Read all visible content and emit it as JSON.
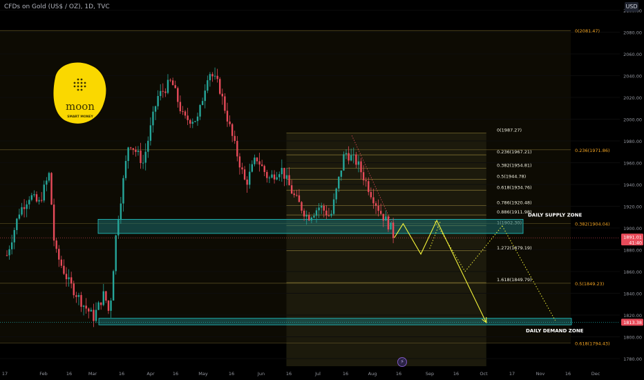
{
  "header": {
    "symbol_title": "CFDs on Gold (US$ / OZ), 1D, TVC",
    "currency_button": "USD"
  },
  "logo": {
    "text_main": "moon",
    "text_sub": "SMART MONEY"
  },
  "colors": {
    "background": "#000000",
    "up_candle": "#26a69a",
    "down_candle": "#e84b5a",
    "fib_line": "#8a7a35",
    "fib_label": "#f5a623",
    "zone_fill": "#1b6d6d",
    "zone_border": "#22c7c7",
    "projection": "#f5f53a",
    "logo_bg": "#fad800",
    "price_badge": "#e84b5a"
  },
  "annotations": {
    "supply_zone": "DAILY SUPPLY ZONE",
    "demand_zone": "DAILY DEMAND ZONE"
  },
  "badges": {
    "last_price": "1891.01",
    "countdown": "41:40",
    "demand_price": "1813.38"
  },
  "icons": {
    "bottom_badge": "lightning-icon"
  },
  "chart_data": {
    "type": "candlestick",
    "title": "CFDs on Gold (US$ / OZ), 1D, TVC",
    "ylim": [
      1770,
      2110
    ],
    "y_ticks": [
      1780,
      1800,
      1820,
      1840,
      1860,
      1880,
      1900,
      1920,
      1940,
      1960,
      1980,
      2000,
      2020,
      2040,
      2060,
      2080,
      2100
    ],
    "x_ticks": [
      "17",
      "Feb",
      "16",
      "Mar",
      "16",
      "Apr",
      "16",
      "May",
      "16",
      "Jun",
      "16",
      "Jul",
      "16",
      "Aug",
      "16",
      "Sep",
      "16",
      "Oct",
      "17",
      "Nov",
      "16",
      "Dec"
    ],
    "price_path": [
      {
        "date": "Jan 10",
        "value": 1875
      },
      {
        "date": "Jan 17",
        "value": 1915
      },
      {
        "date": "Jan 23",
        "value": 1930
      },
      {
        "date": "Jan 28",
        "value": 1922
      },
      {
        "date": "Feb 03",
        "value": 1950
      },
      {
        "date": "Feb 06",
        "value": 1880
      },
      {
        "date": "Feb 14",
        "value": 1850
      },
      {
        "date": "Feb 22",
        "value": 1830
      },
      {
        "date": "Feb 28",
        "value": 1818
      },
      {
        "date": "Mar 06",
        "value": 1840
      },
      {
        "date": "Mar 09",
        "value": 1820
      },
      {
        "date": "Mar 13",
        "value": 1900
      },
      {
        "date": "Mar 20",
        "value": 1980
      },
      {
        "date": "Mar 28",
        "value": 1960
      },
      {
        "date": "Apr 05",
        "value": 2020
      },
      {
        "date": "Apr 13",
        "value": 2035
      },
      {
        "date": "Apr 20",
        "value": 2000
      },
      {
        "date": "Apr 28",
        "value": 2000
      },
      {
        "date": "May 04",
        "value": 2045
      },
      {
        "date": "May 10",
        "value": 2030
      },
      {
        "date": "May 18",
        "value": 1980
      },
      {
        "date": "May 25",
        "value": 1940
      },
      {
        "date": "May 31",
        "value": 1965
      },
      {
        "date": "Jun 07",
        "value": 1945
      },
      {
        "date": "Jun 14",
        "value": 1955
      },
      {
        "date": "Jun 21",
        "value": 1930
      },
      {
        "date": "Jun 29",
        "value": 1910
      },
      {
        "date": "Jul 06",
        "value": 1920
      },
      {
        "date": "Jul 12",
        "value": 1910
      },
      {
        "date": "Jul 20",
        "value": 1970
      },
      {
        "date": "Jul 27",
        "value": 1960
      },
      {
        "date": "Aug 03",
        "value": 1935
      },
      {
        "date": "Aug 09",
        "value": 1915
      },
      {
        "date": "Aug 15",
        "value": 1900
      },
      {
        "date": "Aug 17",
        "value": 1891
      }
    ],
    "fib_large": {
      "levels": [
        {
          "label": "0(2081.47)",
          "value": 2081.47
        },
        {
          "label": "0.236(1971.86)",
          "value": 1971.86
        },
        {
          "label": "0.382(1904.04)",
          "value": 1904.04
        },
        {
          "label": "0.5(1849.23)",
          "value": 1849.23
        },
        {
          "label": "0.618(1794.43)",
          "value": 1794.43
        }
      ]
    },
    "fib_small": {
      "levels": [
        {
          "label": "0(1987.27)",
          "value": 1987.27
        },
        {
          "label": "0.236(1967.21)",
          "value": 1967.21
        },
        {
          "label": "0.382(1954.81)",
          "value": 1954.81
        },
        {
          "label": "0.5(1944.78)",
          "value": 1944.78
        },
        {
          "label": "0.618(1934.76)",
          "value": 1934.76
        },
        {
          "label": "0.786(1920.48)",
          "value": 1920.48
        },
        {
          "label": "0.886(1911.98)",
          "value": 1911.98
        },
        {
          "label": "1(1902.30)",
          "value": 1902.3
        },
        {
          "label": "1.272(1879.19)",
          "value": 1879.19
        },
        {
          "label": "1.618(1849.79)",
          "value": 1849.79
        }
      ]
    },
    "supply_zone": {
      "from": 1895,
      "to": 1908
    },
    "demand_zone": {
      "from": 1811,
      "to": 1817
    },
    "projection_solid": [
      {
        "date": "Aug 17",
        "value": 1891
      },
      {
        "date": "Aug 22",
        "value": 1904
      },
      {
        "date": "Sep 01",
        "value": 1876
      },
      {
        "date": "Sep 10",
        "value": 1907
      },
      {
        "date": "Oct 08",
        "value": 1813
      }
    ],
    "projection_dotted": [
      {
        "date": "Sep 06",
        "value": 1881
      },
      {
        "date": "Sep 12",
        "value": 1906
      },
      {
        "date": "Sep 09",
        "value": 1906
      },
      {
        "date": "Sep 26",
        "value": 1860
      },
      {
        "date": "Sep 26",
        "value": 1860
      },
      {
        "date": "Oct 17",
        "value": 1902
      },
      {
        "date": "Oct 17",
        "value": 1902
      },
      {
        "date": "Nov 16",
        "value": 1815
      }
    ],
    "last_price": 1891.01,
    "demand_price": 1813.38
  }
}
